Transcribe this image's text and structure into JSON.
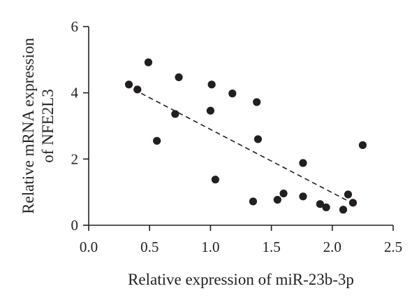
{
  "chart_data": {
    "type": "scatter",
    "title": "",
    "xlabel": "Relative expression of miR-23b-3p",
    "ylabel_lines": [
      "Relative mRNA expression",
      "of NFE2L3"
    ],
    "xlim": [
      0.0,
      2.5
    ],
    "ylim": [
      0,
      6
    ],
    "x_ticks": [
      0.0,
      0.5,
      1.0,
      1.5,
      2.0,
      2.5
    ],
    "x_tick_labels": [
      "0.0",
      "0.5",
      "1.0",
      "1.5",
      "2.0",
      "2.5"
    ],
    "y_ticks": [
      0,
      2,
      4,
      6
    ],
    "y_tick_labels": [
      "0",
      "2",
      "4",
      "6"
    ],
    "grid": false,
    "legend": false,
    "point_color": "#231f20",
    "points": [
      {
        "x": 0.33,
        "y": 4.25
      },
      {
        "x": 0.4,
        "y": 4.1
      },
      {
        "x": 0.49,
        "y": 4.92
      },
      {
        "x": 0.56,
        "y": 2.55
      },
      {
        "x": 0.71,
        "y": 3.36
      },
      {
        "x": 0.74,
        "y": 4.47
      },
      {
        "x": 1.0,
        "y": 3.46
      },
      {
        "x": 1.01,
        "y": 4.25
      },
      {
        "x": 1.04,
        "y": 1.38
      },
      {
        "x": 1.18,
        "y": 3.98
      },
      {
        "x": 1.35,
        "y": 0.72
      },
      {
        "x": 1.38,
        "y": 3.72
      },
      {
        "x": 1.39,
        "y": 2.6
      },
      {
        "x": 1.55,
        "y": 0.77
      },
      {
        "x": 1.6,
        "y": 0.96
      },
      {
        "x": 1.76,
        "y": 1.88
      },
      {
        "x": 1.76,
        "y": 0.87
      },
      {
        "x": 1.9,
        "y": 0.64
      },
      {
        "x": 1.95,
        "y": 0.54
      },
      {
        "x": 2.09,
        "y": 0.47
      },
      {
        "x": 2.13,
        "y": 0.93
      },
      {
        "x": 2.17,
        "y": 0.68
      },
      {
        "x": 2.25,
        "y": 2.42
      }
    ],
    "trendline": {
      "x1": 0.37,
      "y1": 4.1,
      "x2": 2.2,
      "y2": 0.6,
      "style": "dashed"
    }
  }
}
